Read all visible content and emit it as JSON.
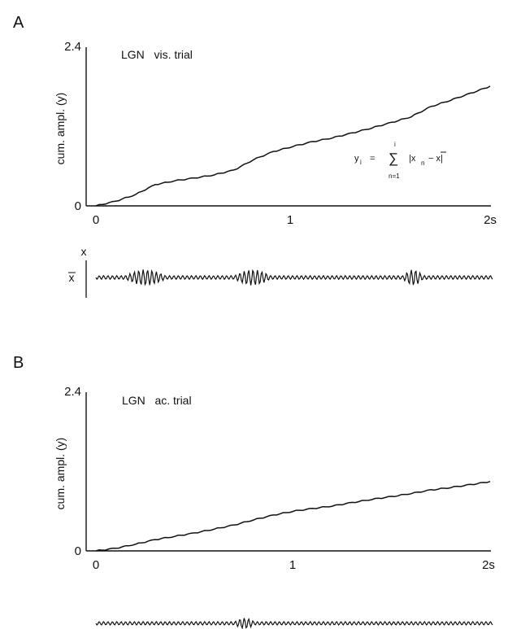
{
  "chart_data": [
    {
      "panel": "A",
      "type": "line",
      "annotation": "LGN   vis. trial",
      "ylabel": "cum. ampl. (y)",
      "xlim": [
        0,
        2
      ],
      "ylim": [
        0,
        2.4
      ],
      "x_ticks": [
        "0",
        "1",
        "2s"
      ],
      "y_ticks": [
        "0",
        "2.4"
      ],
      "formula": {
        "lhs": "y",
        "lhs_sub": "i",
        "equals": "=",
        "sum": "∑",
        "upper": "i",
        "lower": "n=1",
        "body": "|x",
        "body_sub": "n",
        "tail": "− x|"
      },
      "series": [
        {
          "x": [
            0,
            0.1,
            0.2,
            0.3,
            0.4,
            0.5,
            0.6,
            0.7,
            0.8,
            0.9,
            1.0,
            1.1,
            1.2,
            1.3,
            1.4,
            1.5,
            1.6,
            1.7,
            1.8,
            1.9,
            2.0
          ],
          "y": [
            0,
            0.07,
            0.17,
            0.32,
            0.38,
            0.42,
            0.47,
            0.54,
            0.7,
            0.82,
            0.9,
            0.97,
            1.03,
            1.1,
            1.18,
            1.26,
            1.35,
            1.5,
            1.6,
            1.7,
            1.81
          ]
        }
      ],
      "trace": {
        "upper_label": "x",
        "mean_label": "x",
        "bursts": [
          [
            0.15,
            0.35
          ],
          [
            0.7,
            0.88
          ],
          [
            1.55,
            1.65
          ]
        ]
      }
    },
    {
      "panel": "B",
      "type": "line",
      "annotation": "LGN   ac. trial",
      "ylabel": "cum. ampl. (y)",
      "xlim": [
        0,
        2
      ],
      "ylim": [
        0,
        2.4
      ],
      "x_ticks": [
        "0",
        "1",
        "2s"
      ],
      "y_ticks": [
        "0",
        "2.4"
      ],
      "series": [
        {
          "x": [
            0,
            0.1,
            0.2,
            0.3,
            0.4,
            0.5,
            0.6,
            0.7,
            0.8,
            0.9,
            1.0,
            1.1,
            1.2,
            1.3,
            1.4,
            1.5,
            1.6,
            1.7,
            1.8,
            1.9,
            2.0
          ],
          "y": [
            0,
            0.04,
            0.1,
            0.17,
            0.22,
            0.27,
            0.33,
            0.39,
            0.47,
            0.54,
            0.6,
            0.64,
            0.68,
            0.73,
            0.78,
            0.82,
            0.87,
            0.92,
            0.96,
            1.0,
            1.05
          ]
        }
      ],
      "trace": {
        "bursts": [
          [
            0.7,
            0.8
          ]
        ]
      }
    }
  ]
}
